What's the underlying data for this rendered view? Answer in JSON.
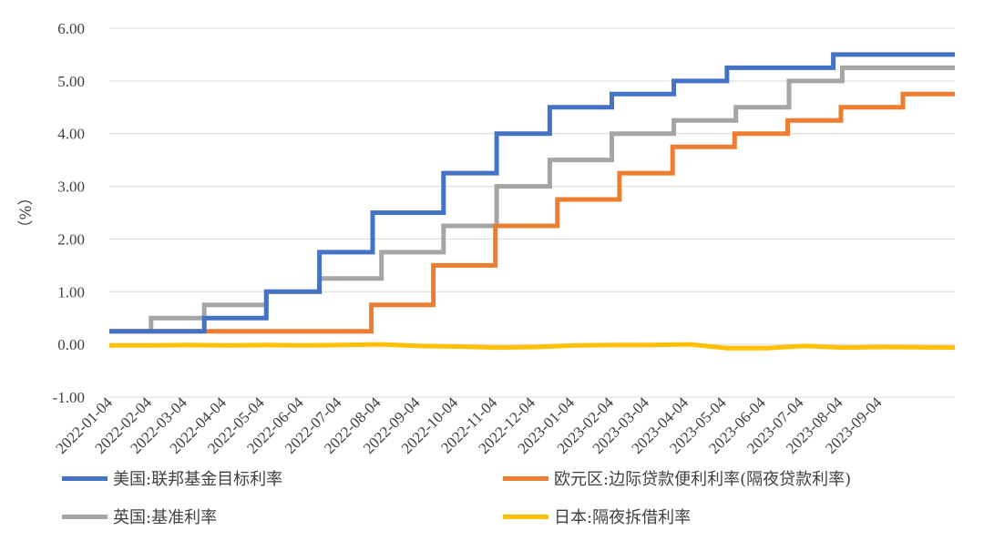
{
  "chart_data": {
    "type": "line",
    "subtype": "step",
    "ylabel": "（%）",
    "ylim": [
      -1.0,
      6.0
    ],
    "yticks": [
      "6.00",
      "5.00",
      "4.00",
      "3.00",
      "2.00",
      "1.00",
      "0.00",
      "-1.00"
    ],
    "xlim": [
      "2022-01-01",
      "2023-10-31"
    ],
    "xticks": [
      "2022-01-04",
      "2022-02-04",
      "2022-03-04",
      "2022-04-04",
      "2022-05-04",
      "2022-06-04",
      "2022-07-04",
      "2022-08-04",
      "2022-09-04",
      "2022-10-04",
      "2022-11-04",
      "2022-12-04",
      "2023-01-04",
      "2023-02-04",
      "2023-03-04",
      "2023-04-04",
      "2023-05-04",
      "2023-06-04",
      "2023-07-04",
      "2023-08-04",
      "2023-09-04"
    ],
    "grid": true,
    "legend": "bottom",
    "series": [
      {
        "name": "美国:联邦基金目标利率",
        "color": "#4472C4",
        "points": [
          [
            "2022-01-01",
            0.25
          ],
          [
            "2022-03-17",
            0.5
          ],
          [
            "2022-05-05",
            1.0
          ],
          [
            "2022-06-16",
            1.75
          ],
          [
            "2022-07-28",
            2.5
          ],
          [
            "2022-09-22",
            3.25
          ],
          [
            "2022-11-03",
            4.0
          ],
          [
            "2022-12-15",
            4.5
          ],
          [
            "2023-02-02",
            4.75
          ],
          [
            "2023-03-23",
            5.0
          ],
          [
            "2023-05-04",
            5.25
          ],
          [
            "2023-07-27",
            5.5
          ],
          [
            "2023-10-31",
            5.5
          ]
        ]
      },
      {
        "name": "欧元区:边际贷款便利利率(隔夜贷款利率)",
        "color": "#ED7D31",
        "points": [
          [
            "2022-01-01",
            0.25
          ],
          [
            "2022-07-27",
            0.75
          ],
          [
            "2022-09-14",
            1.5
          ],
          [
            "2022-11-02",
            2.25
          ],
          [
            "2022-12-21",
            2.75
          ],
          [
            "2023-02-08",
            3.25
          ],
          [
            "2023-03-22",
            3.75
          ],
          [
            "2023-05-10",
            4.0
          ],
          [
            "2023-06-21",
            4.25
          ],
          [
            "2023-08-02",
            4.5
          ],
          [
            "2023-09-20",
            4.75
          ],
          [
            "2023-10-31",
            4.75
          ]
        ]
      },
      {
        "name": "英国:基准利率",
        "color": "#A5A5A5",
        "points": [
          [
            "2022-01-01",
            0.25
          ],
          [
            "2022-02-03",
            0.5
          ],
          [
            "2022-03-17",
            0.75
          ],
          [
            "2022-05-05",
            1.0
          ],
          [
            "2022-06-16",
            1.25
          ],
          [
            "2022-08-04",
            1.75
          ],
          [
            "2022-09-22",
            2.25
          ],
          [
            "2022-11-03",
            3.0
          ],
          [
            "2022-12-15",
            3.5
          ],
          [
            "2023-02-02",
            4.0
          ],
          [
            "2023-03-23",
            4.25
          ],
          [
            "2023-05-11",
            4.5
          ],
          [
            "2023-06-22",
            5.0
          ],
          [
            "2023-08-03",
            5.25
          ],
          [
            "2023-10-31",
            5.25
          ]
        ]
      },
      {
        "name": "日本:隔夜拆借利率",
        "color": "#FFC000",
        "points": [
          [
            "2022-01-01",
            -0.02
          ],
          [
            "2022-02-04",
            -0.02
          ],
          [
            "2022-03-04",
            -0.01
          ],
          [
            "2022-04-04",
            -0.02
          ],
          [
            "2022-05-04",
            -0.01
          ],
          [
            "2022-06-04",
            -0.02
          ],
          [
            "2022-07-04",
            -0.01
          ],
          [
            "2022-08-04",
            0.0
          ],
          [
            "2022-09-04",
            -0.03
          ],
          [
            "2022-10-04",
            -0.04
          ],
          [
            "2022-11-04",
            -0.06
          ],
          [
            "2022-12-04",
            -0.05
          ],
          [
            "2023-01-04",
            -0.02
          ],
          [
            "2023-02-04",
            -0.01
          ],
          [
            "2023-03-04",
            -0.01
          ],
          [
            "2023-04-04",
            0.0
          ],
          [
            "2023-05-04",
            -0.07
          ],
          [
            "2023-06-04",
            -0.07
          ],
          [
            "2023-07-04",
            -0.03
          ],
          [
            "2023-08-04",
            -0.06
          ],
          [
            "2023-09-04",
            -0.05
          ],
          [
            "2023-10-31",
            -0.06
          ]
        ]
      }
    ]
  }
}
